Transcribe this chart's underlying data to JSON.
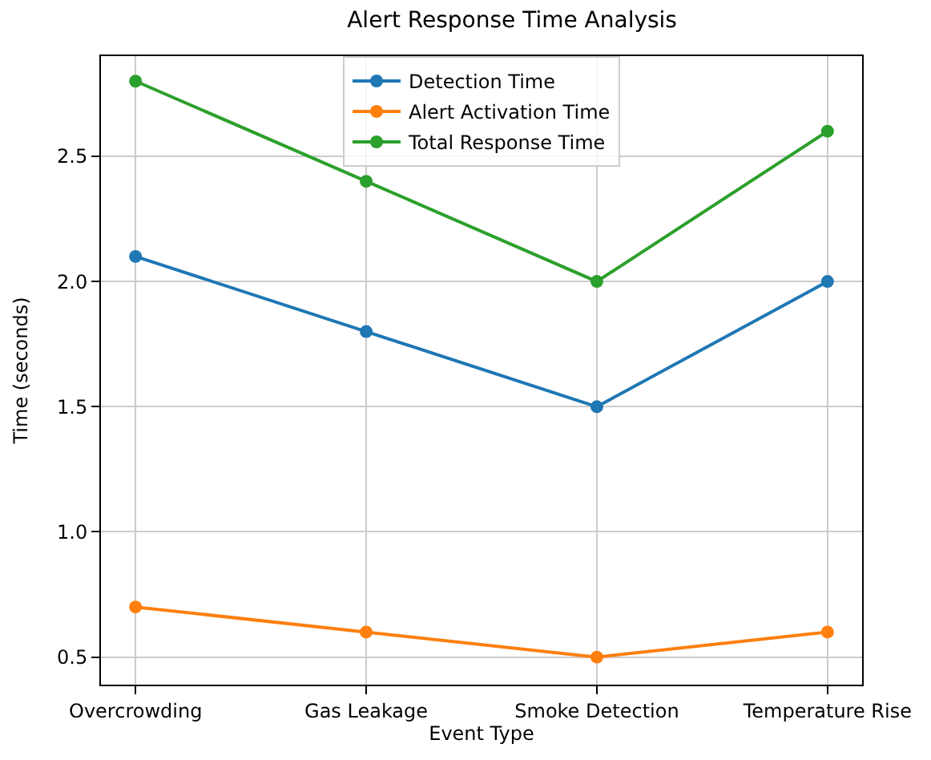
{
  "chart_data": {
    "type": "line",
    "title": "Alert Response Time Analysis",
    "xlabel": "Event Type",
    "ylabel": "Time (seconds)",
    "categories": [
      "Overcrowding",
      "Gas Leakage",
      "Smoke Detection",
      "Temperature Rise"
    ],
    "series": [
      {
        "name": "Detection Time",
        "color": "#1f77b4",
        "values": [
          2.1,
          1.8,
          1.5,
          2.0
        ]
      },
      {
        "name": "Alert Activation Time",
        "color": "#ff7f0e",
        "values": [
          0.7,
          0.6,
          0.5,
          0.6
        ]
      },
      {
        "name": "Total Response Time",
        "color": "#2ca02c",
        "values": [
          2.8,
          2.4,
          2.0,
          2.6
        ]
      }
    ],
    "ylim": [
      0.39,
      2.9
    ],
    "yticks": [
      {
        "value": 0.5,
        "label": "0.5"
      },
      {
        "value": 1.0,
        "label": "1.0"
      },
      {
        "value": 1.5,
        "label": "1.5"
      },
      {
        "value": 2.0,
        "label": "2.0"
      },
      {
        "value": 2.5,
        "label": "2.5"
      }
    ],
    "grid": true,
    "legend": "top",
    "marker": "circle",
    "line_style": "solid"
  }
}
